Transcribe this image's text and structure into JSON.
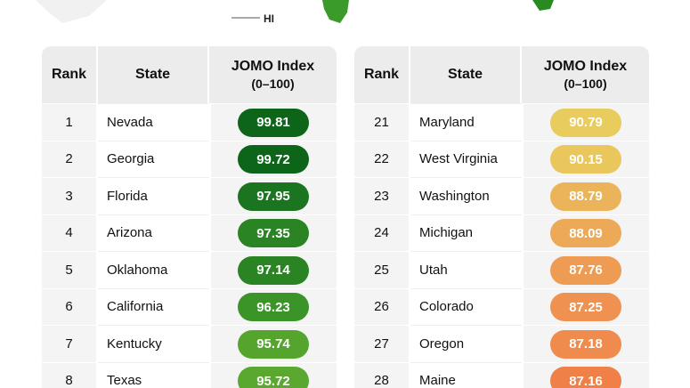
{
  "map": {
    "label": "HI"
  },
  "tables": [
    {
      "header": {
        "rank": "Rank",
        "state": "State",
        "index": "JOMO Index",
        "index_range": "(0–100)"
      },
      "pill_colors": [
        "#0d651a",
        "#0d651a",
        "#1a7420",
        "#2a8424",
        "#2a8424",
        "#3a9428",
        "#55a42e",
        "#5aa830"
      ],
      "rows": [
        [
          1,
          "Nevada",
          99.81
        ],
        [
          2,
          "Georgia",
          99.72
        ],
        [
          3,
          "Florida",
          97.95
        ],
        [
          4,
          "Arizona",
          97.35
        ],
        [
          5,
          "Oklahoma",
          97.14
        ],
        [
          6,
          "California",
          96.23
        ],
        [
          7,
          "Kentucky",
          95.74
        ],
        [
          8,
          "Texas",
          95.72
        ]
      ]
    },
    {
      "header": {
        "rank": "Rank",
        "state": "State",
        "index": "JOMO Index",
        "index_range": "(0–100)"
      },
      "pill_colors": [
        "#e8cc5e",
        "#e9c75c",
        "#ebb45a",
        "#eca957",
        "#ee9c54",
        "#ef9150",
        "#ef8c4d",
        "#ef8148"
      ],
      "rows": [
        [
          21,
          "Maryland",
          90.79
        ],
        [
          22,
          "West Virginia",
          90.15
        ],
        [
          23,
          "Washington",
          88.79
        ],
        [
          24,
          "Michigan",
          88.09
        ],
        [
          25,
          "Utah",
          87.76
        ],
        [
          26,
          "Colorado",
          87.25
        ],
        [
          27,
          "Oregon",
          87.18
        ],
        [
          28,
          "Maine",
          87.16
        ]
      ]
    }
  ]
}
